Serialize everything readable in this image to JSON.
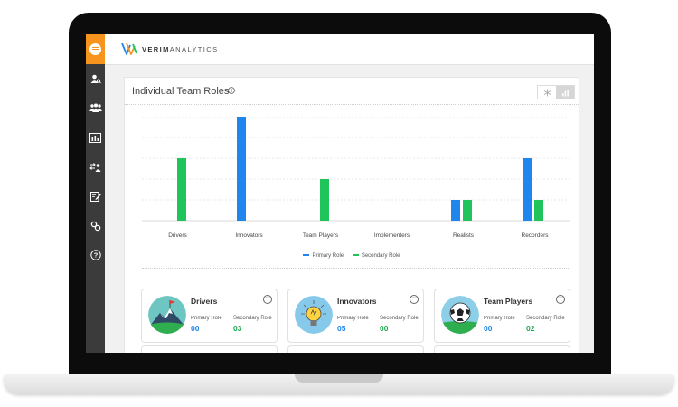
{
  "app": {
    "logo_prefix": "VERIM",
    "logo_suffix": "ANALYTICS"
  },
  "sidebar": {
    "items": [
      {
        "icon": "user-search-icon"
      },
      {
        "icon": "users-group-icon"
      },
      {
        "icon": "report-chart-icon"
      },
      {
        "icon": "user-transfer-icon"
      },
      {
        "icon": "edit-document-icon"
      },
      {
        "icon": "link-icon"
      },
      {
        "icon": "help-icon"
      }
    ]
  },
  "panel": {
    "title": "Individual Team Roles",
    "toggle": [
      "snowflake-icon",
      "bar-chart-icon"
    ]
  },
  "chart_data": {
    "type": "bar",
    "categories": [
      "Drivers",
      "Innovators",
      "Team Players",
      "Implementers",
      "Realists",
      "Recorders"
    ],
    "series": [
      {
        "name": "Primary Role",
        "color": "#1f86ee",
        "values": [
          0,
          5,
          0,
          0,
          1,
          3
        ]
      },
      {
        "name": "Secondary Role",
        "color": "#1fc55a",
        "values": [
          3,
          0,
          2,
          0,
          1,
          1
        ]
      }
    ],
    "ylim": [
      0,
      5
    ],
    "grid": true,
    "legend": "bottom-center"
  },
  "cards": [
    {
      "title": "Drivers",
      "icon": "mountain-flag-icon",
      "primary_label": "Primary Role",
      "primary_value": "00",
      "secondary_label": "Secondary Role",
      "secondary_value": "03"
    },
    {
      "title": "Innovators",
      "icon": "lightbulb-icon",
      "primary_label": "Primary Role",
      "primary_value": "05",
      "secondary_label": "Secondary Role",
      "secondary_value": "00"
    },
    {
      "title": "Team Players",
      "icon": "soccer-ball-icon",
      "primary_label": "Primary Role",
      "primary_value": "00",
      "secondary_label": "Secondary Role",
      "secondary_value": "02"
    }
  ]
}
